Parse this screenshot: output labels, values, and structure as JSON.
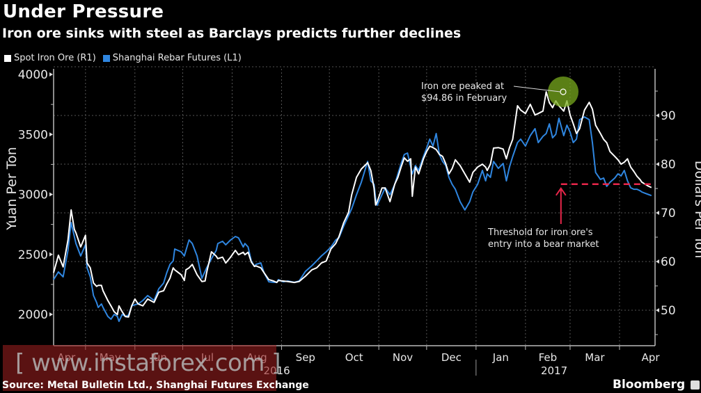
{
  "header": {
    "title": "Under Pressure",
    "subtitle": "Iron ore sinks with steel as Barclays predicts further declines"
  },
  "legend": [
    {
      "label": "Spot Iron Ore  (R1)",
      "color": "#ffffff"
    },
    {
      "label": "Shanghai Rebar Futures (L1)",
      "color": "#2f86e0"
    }
  ],
  "footer": {
    "source": "Source: Metal Bulletin Ltd., Shanghai Futures Exchange",
    "brand": "Bloomberg",
    "watermark": "[ www.instaforex.com ]"
  },
  "chart_data": {
    "type": "line",
    "title": "Under Pressure",
    "subtitle": "Iron ore sinks with steel as Barclays predicts further declines",
    "x_unit": "days since 2016-04-11",
    "x_start_date": "2016-04-11",
    "xlim": [
      0,
      378
    ],
    "x_ticks": [
      {
        "label": "Apr",
        "day": -10,
        "label_day": 8
      },
      {
        "label": "May",
        "day": 20
      },
      {
        "label": "Jun",
        "day": 51
      },
      {
        "label": "Jul",
        "day": 81
      },
      {
        "label": "Aug",
        "day": 112
      },
      {
        "label": "Sep",
        "day": 143
      },
      {
        "label": "Oct",
        "day": 173
      },
      {
        "label": "Nov",
        "day": 204
      },
      {
        "label": "Dec",
        "day": 234
      },
      {
        "label": "Jan",
        "day": 265
      },
      {
        "label": "Feb",
        "day": 296
      },
      {
        "label": "Mar",
        "day": 324
      },
      {
        "label": "Apr",
        "day": 355
      }
    ],
    "year_labels": [
      {
        "label": "2016",
        "day": 140
      },
      {
        "label": "2017",
        "day": 314
      }
    ],
    "year_divider_day": 265,
    "left_axis": {
      "label": "Yuan Per Ton",
      "ticks": [
        2000,
        2500,
        3000,
        3500,
        4000
      ],
      "minor_ticks": [
        2250,
        2750,
        3250,
        3750
      ],
      "range": [
        1739,
        4046
      ]
    },
    "right_axis": {
      "label": "Dollars Per Ton",
      "ticks": [
        50,
        60,
        70,
        80,
        90
      ],
      "minor_ticks": [
        45,
        55,
        65,
        75,
        85,
        95
      ],
      "range": [
        42.7,
        99.6
      ]
    },
    "gridlines": true,
    "legend_position": "top-left",
    "x": [
      0,
      3,
      6,
      9,
      11,
      13,
      14,
      17,
      20,
      21,
      23,
      25,
      27,
      28,
      30,
      31,
      34,
      36,
      38,
      40,
      41,
      43,
      45,
      47,
      49,
      51,
      53,
      56,
      59,
      63,
      66,
      69,
      71,
      73,
      75,
      76,
      80,
      82,
      83,
      85,
      87,
      90,
      93,
      95,
      96,
      99,
      102,
      103,
      106,
      108,
      111,
      114,
      116,
      119,
      120,
      122,
      124,
      126,
      127,
      130,
      132,
      135,
      138,
      140,
      141,
      144,
      147,
      151,
      154,
      158,
      162,
      165,
      168,
      171,
      174,
      177,
      179,
      182,
      185,
      187,
      190,
      193,
      197,
      199,
      201,
      202,
      203,
      206,
      208,
      211,
      214,
      216,
      218,
      220,
      222,
      224,
      225,
      227,
      229,
      232,
      234,
      236,
      238,
      240,
      242,
      244,
      246,
      248,
      250,
      252,
      255,
      258,
      261,
      263,
      266,
      269,
      271,
      272,
      274,
      276,
      279,
      282,
      284,
      286,
      288,
      291,
      293,
      296,
      299,
      302,
      304,
      307,
      309,
      311,
      313,
      315,
      317,
      320,
      322,
      324,
      326,
      328,
      330,
      333,
      336,
      338,
      340,
      343,
      345,
      347,
      349,
      352,
      354,
      356,
      358,
      360,
      362,
      364,
      366,
      368,
      369,
      371,
      373,
      375
    ],
    "series": [
      {
        "name": "Shanghai Rebar Futures (L1)",
        "axis": "left",
        "color": "#2f86e0",
        "values": [
          2290,
          2354,
          2313,
          2533,
          2765,
          2649,
          2591,
          2487,
          2580,
          2388,
          2313,
          2157,
          2099,
          2058,
          2087,
          2058,
          1983,
          1960,
          2000,
          1983,
          1942,
          2000,
          1983,
          1994,
          2070,
          2081,
          2087,
          2116,
          2157,
          2116,
          2214,
          2261,
          2348,
          2417,
          2446,
          2545,
          2522,
          2487,
          2533,
          2620,
          2591,
          2487,
          2301,
          2359,
          2388,
          2464,
          2533,
          2591,
          2609,
          2580,
          2620,
          2649,
          2638,
          2562,
          2591,
          2562,
          2446,
          2400,
          2417,
          2429,
          2348,
          2272,
          2267,
          2267,
          2290,
          2272,
          2278,
          2267,
          2278,
          2359,
          2406,
          2446,
          2487,
          2522,
          2562,
          2620,
          2638,
          2736,
          2823,
          2881,
          2997,
          3101,
          3275,
          3113,
          3084,
          2968,
          2910,
          2997,
          3055,
          2997,
          3084,
          3171,
          3258,
          3333,
          3345,
          3229,
          3171,
          3241,
          3200,
          3316,
          3386,
          3461,
          3403,
          3507,
          3333,
          3275,
          3241,
          3142,
          3084,
          3043,
          2939,
          2870,
          2939,
          3020,
          3084,
          3200,
          3113,
          3171,
          3142,
          3275,
          3217,
          3258,
          3113,
          3229,
          3316,
          3432,
          3461,
          3403,
          3490,
          3548,
          3432,
          3484,
          3507,
          3588,
          3472,
          3501,
          3635,
          3490,
          3577,
          3519,
          3432,
          3461,
          3623,
          3646,
          3623,
          3432,
          3183,
          3125,
          3136,
          3067,
          3101,
          3136,
          3171,
          3154,
          3200,
          3113,
          3055,
          3043,
          3043,
          3030,
          3020,
          3010,
          3000,
          2990
        ]
      },
      {
        "name": "Spot Iron Ore (R1)",
        "axis": "right",
        "color": "#ffffff",
        "values": [
          57.7,
          61.3,
          58.9,
          64.4,
          70.6,
          66.6,
          65.9,
          63.0,
          65.4,
          59.7,
          58.7,
          55.6,
          54.9,
          55.1,
          55.1,
          54.0,
          52.0,
          50.9,
          49.7,
          49.1,
          50.9,
          49.7,
          48.7,
          48.6,
          50.9,
          52.3,
          51.3,
          50.9,
          52.3,
          51.6,
          53.7,
          54.0,
          55.4,
          56.6,
          58.7,
          58.3,
          57.3,
          56.1,
          58.3,
          58.7,
          59.4,
          57.3,
          55.9,
          56.0,
          57.7,
          62.0,
          61.1,
          60.6,
          60.9,
          59.7,
          60.9,
          62.3,
          61.4,
          61.9,
          61.4,
          61.9,
          59.9,
          59.0,
          59.1,
          58.7,
          57.7,
          56.3,
          56.0,
          55.7,
          56.1,
          56.0,
          55.9,
          55.7,
          55.9,
          57.0,
          58.3,
          58.7,
          59.7,
          60.1,
          62.6,
          63.7,
          65.1,
          68.0,
          70.1,
          73.7,
          77.3,
          79.0,
          80.3,
          78.7,
          75.1,
          71.6,
          72.3,
          75.1,
          75.1,
          72.3,
          75.9,
          77.3,
          79.4,
          81.3,
          80.6,
          81.1,
          73.4,
          79.4,
          78.0,
          81.1,
          82.6,
          83.7,
          83.4,
          83.0,
          82.0,
          81.6,
          80.1,
          78.0,
          79.1,
          80.9,
          79.7,
          78.0,
          76.3,
          78.3,
          79.4,
          80.0,
          79.4,
          78.7,
          80.0,
          83.3,
          83.4,
          83.1,
          81.1,
          83.4,
          85.1,
          92.0,
          91.1,
          90.4,
          92.3,
          90.1,
          90.4,
          90.9,
          94.86,
          92.6,
          91.6,
          93.0,
          92.0,
          90.9,
          93.0,
          90.1,
          88.3,
          86.3,
          87.3,
          91.1,
          92.7,
          91.3,
          88.0,
          86.3,
          85.1,
          84.4,
          82.6,
          81.6,
          80.9,
          80.0,
          80.4,
          81.1,
          79.4,
          78.5,
          77.5,
          76.8,
          76.3,
          75.9,
          75.5,
          75.2
        ]
      }
    ],
    "annotations": [
      {
        "text_lines": [
          "Iron ore peaked at",
          "$94.86 in February"
        ],
        "type": "peak-marker",
        "day": 320,
        "value": 94.86,
        "axis": "right",
        "color": "#7fae1c"
      },
      {
        "text_lines": [
          "Threshold for iron ore's",
          "entry into a bear market"
        ],
        "type": "threshold-line",
        "value": 75.89,
        "axis": "right",
        "from_day": 320,
        "color": "#e8264a"
      }
    ]
  }
}
